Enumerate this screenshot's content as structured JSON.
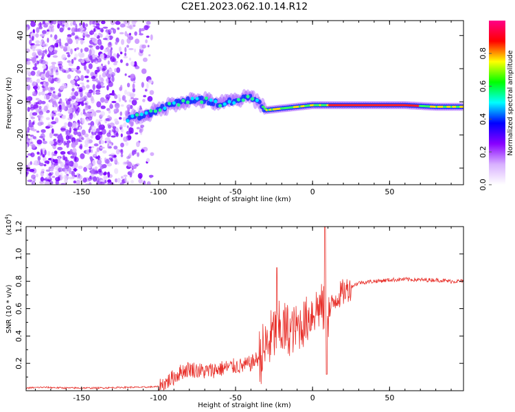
{
  "title": "C2E1.2023.062.10.14.R12",
  "chart_data": [
    {
      "type": "heatmap",
      "xlabel": "Height of straight line (km)",
      "ylabel": "Frequency (Hz)",
      "xlim": [
        -186,
        98
      ],
      "ylim": [
        -50,
        49
      ],
      "xticks": [
        -150,
        -100,
        -50,
        0,
        50
      ],
      "yticks": [
        -40,
        -20,
        0,
        20,
        40
      ],
      "colorbar": {
        "label": "Normalized spectral amplitude",
        "range": [
          0.0,
          1.0
        ],
        "ticks": [
          "0.0",
          "0.2",
          "0.4",
          "0.6",
          "0.8"
        ],
        "colors": [
          "#ffffff",
          "#d8b0ff",
          "#8800ff",
          "#0000ff",
          "#00ffff",
          "#00ff00",
          "#ffff00",
          "#ff0000",
          "#ff0088"
        ]
      },
      "ridge": {
        "x": [
          -120,
          -110,
          -100,
          -90,
          -80,
          -70,
          -60,
          -50,
          -40,
          -35,
          -30,
          -20,
          -10,
          0,
          10,
          20,
          40,
          60,
          80,
          98
        ],
        "y": [
          -10,
          -8,
          -5,
          -1,
          1,
          1,
          -1,
          1,
          3,
          0,
          -5,
          -4,
          -3,
          -2,
          -2,
          -2,
          -2,
          -2,
          -3,
          -3
        ]
      }
    },
    {
      "type": "line",
      "xlabel": "Height of straight line (km)",
      "ylabel": "SNR (10 * v/v)",
      "multiplier": "(x10",
      "multiplier_exp": "4",
      "multiplier_close": ")",
      "xlim": [
        -186,
        98
      ],
      "ylim": [
        0,
        1.2
      ],
      "xticks": [
        -150,
        -100,
        -50,
        0,
        50
      ],
      "yticks": [
        "0.2",
        "0.4",
        "0.6",
        "0.8",
        "1.0",
        "1.2"
      ],
      "series": [
        {
          "color": "#e8302a",
          "x": [
            -186,
            -175,
            -160,
            -140,
            -120,
            -110,
            -100,
            -95,
            -90,
            -85,
            -80,
            -75,
            -70,
            -65,
            -60,
            -55,
            -50,
            -45,
            -40,
            -35,
            -30,
            -25,
            -20,
            -15,
            -10,
            -5,
            0,
            5,
            10,
            15,
            20,
            25,
            30,
            40,
            50,
            60,
            70,
            80,
            90,
            98
          ],
          "y": [
            0.02,
            0.025,
            0.02,
            0.02,
            0.025,
            0.025,
            0.03,
            0.06,
            0.1,
            0.14,
            0.16,
            0.15,
            0.14,
            0.15,
            0.16,
            0.17,
            0.18,
            0.18,
            0.2,
            0.24,
            0.32,
            0.42,
            0.45,
            0.43,
            0.46,
            0.5,
            0.58,
            0.62,
            0.55,
            0.68,
            0.72,
            0.76,
            0.79,
            0.8,
            0.81,
            0.815,
            0.81,
            0.81,
            0.8,
            0.8
          ]
        }
      ]
    }
  ]
}
